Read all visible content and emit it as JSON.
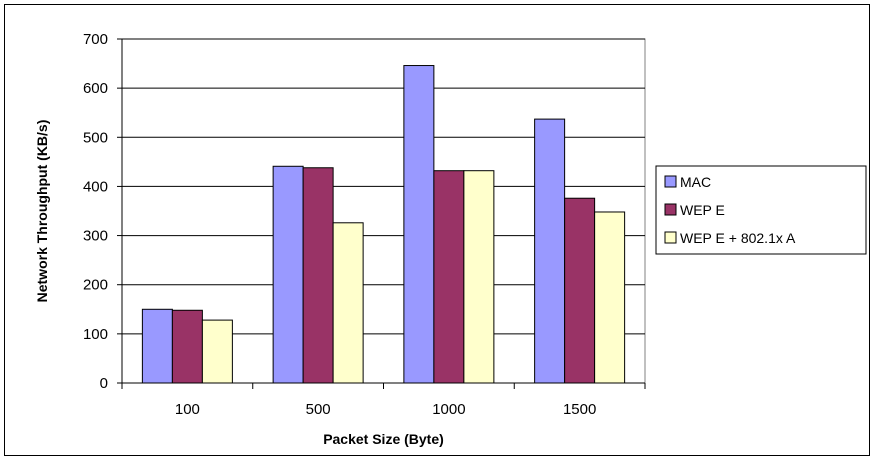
{
  "chart_data": {
    "type": "bar",
    "title": "",
    "xlabel": "Packet Size (Byte)",
    "ylabel": "Network Throughput (KB/s)",
    "categories": [
      "100",
      "500",
      "1000",
      "1500"
    ],
    "ylim": [
      0,
      700
    ],
    "yticks": [
      "0",
      "100",
      "200",
      "300",
      "400",
      "500",
      "600",
      "700"
    ],
    "grid": true,
    "legend_position": "right",
    "series": [
      {
        "name": "MAC",
        "color": "#9999ff",
        "values": [
          150,
          441,
          646,
          537
        ]
      },
      {
        "name": "WEP E",
        "color": "#993366",
        "values": [
          148,
          438,
          432,
          376
        ]
      },
      {
        "name": "WEP E + 802.1x A",
        "color": "#ffffcc",
        "values": [
          128,
          326,
          432,
          348
        ]
      }
    ]
  }
}
